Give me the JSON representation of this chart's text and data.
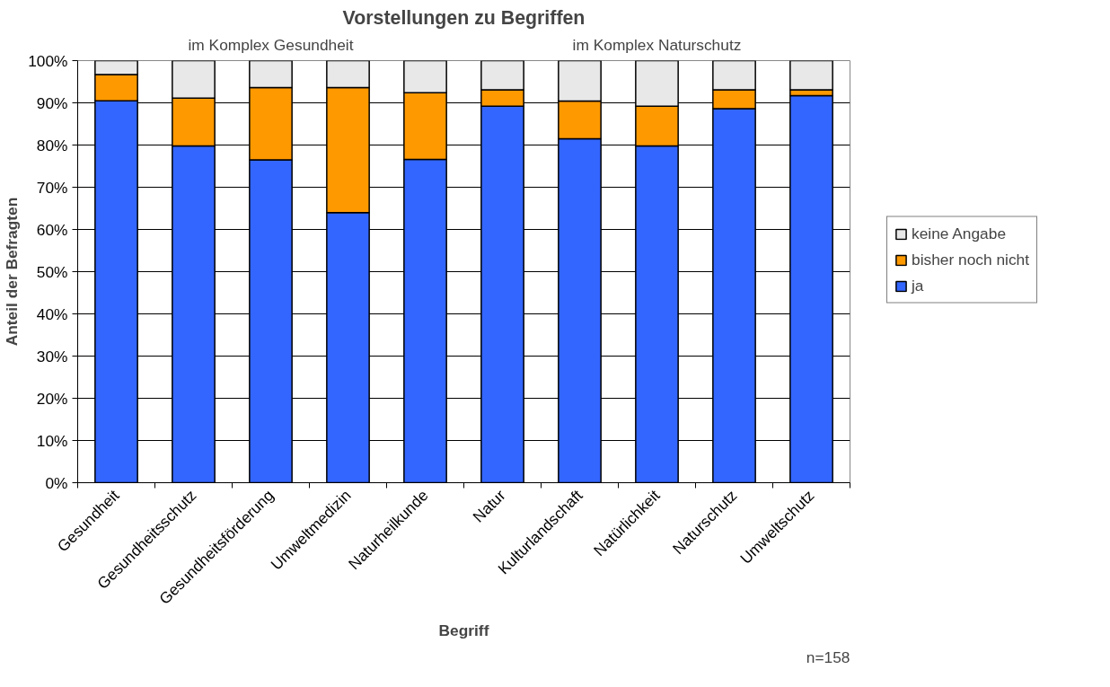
{
  "chart_data": {
    "type": "bar",
    "title": "Vorstellungen zu Begriffen",
    "xlabel": "Begriff",
    "ylabel": "Anteil der Befragten",
    "categories": [
      "Gesundheit",
      "Gesundheitsschutz",
      "Gesundheitsförderung",
      "Umweltmedizin",
      "Naturheilkunde",
      "Natur",
      "Kulturlandschaft",
      "Natürlichkeit",
      "Naturschutz",
      "Umweltschutz"
    ],
    "stacked": true,
    "series": [
      {
        "name": "ja",
        "color": "#3366ff",
        "values": [
          90.5,
          79.8,
          76.5,
          64.0,
          76.6,
          89.2,
          81.5,
          79.8,
          88.6,
          91.7
        ]
      },
      {
        "name": "bisher noch nicht",
        "color": "#ff9900",
        "values": [
          6.2,
          11.3,
          17.1,
          29.6,
          15.8,
          3.9,
          8.9,
          9.4,
          4.5,
          1.4
        ]
      },
      {
        "name": "keine Angabe",
        "color": "#e8e8e8",
        "values": [
          3.3,
          8.9,
          6.4,
          6.4,
          7.6,
          6.9,
          9.6,
          10.8,
          6.9,
          6.9
        ]
      }
    ],
    "ylim": [
      0,
      100
    ],
    "yticks": [
      {
        "value": 0,
        "label": "0%"
      },
      {
        "value": 10,
        "label": "10%"
      },
      {
        "value": 20,
        "label": "20%"
      },
      {
        "value": 30,
        "label": "30%"
      },
      {
        "value": 40,
        "label": "40%"
      },
      {
        "value": 50,
        "label": "50%"
      },
      {
        "value": 60,
        "label": "60%"
      },
      {
        "value": 70,
        "label": "70%"
      },
      {
        "value": 80,
        "label": "80%"
      },
      {
        "value": 90,
        "label": "90%"
      },
      {
        "value": 100,
        "label": "100%"
      }
    ],
    "grid": "y",
    "legend": "right",
    "annotations": [
      "im Komplex Gesundheit",
      "im Komplex Naturschutz",
      "n=158"
    ]
  }
}
